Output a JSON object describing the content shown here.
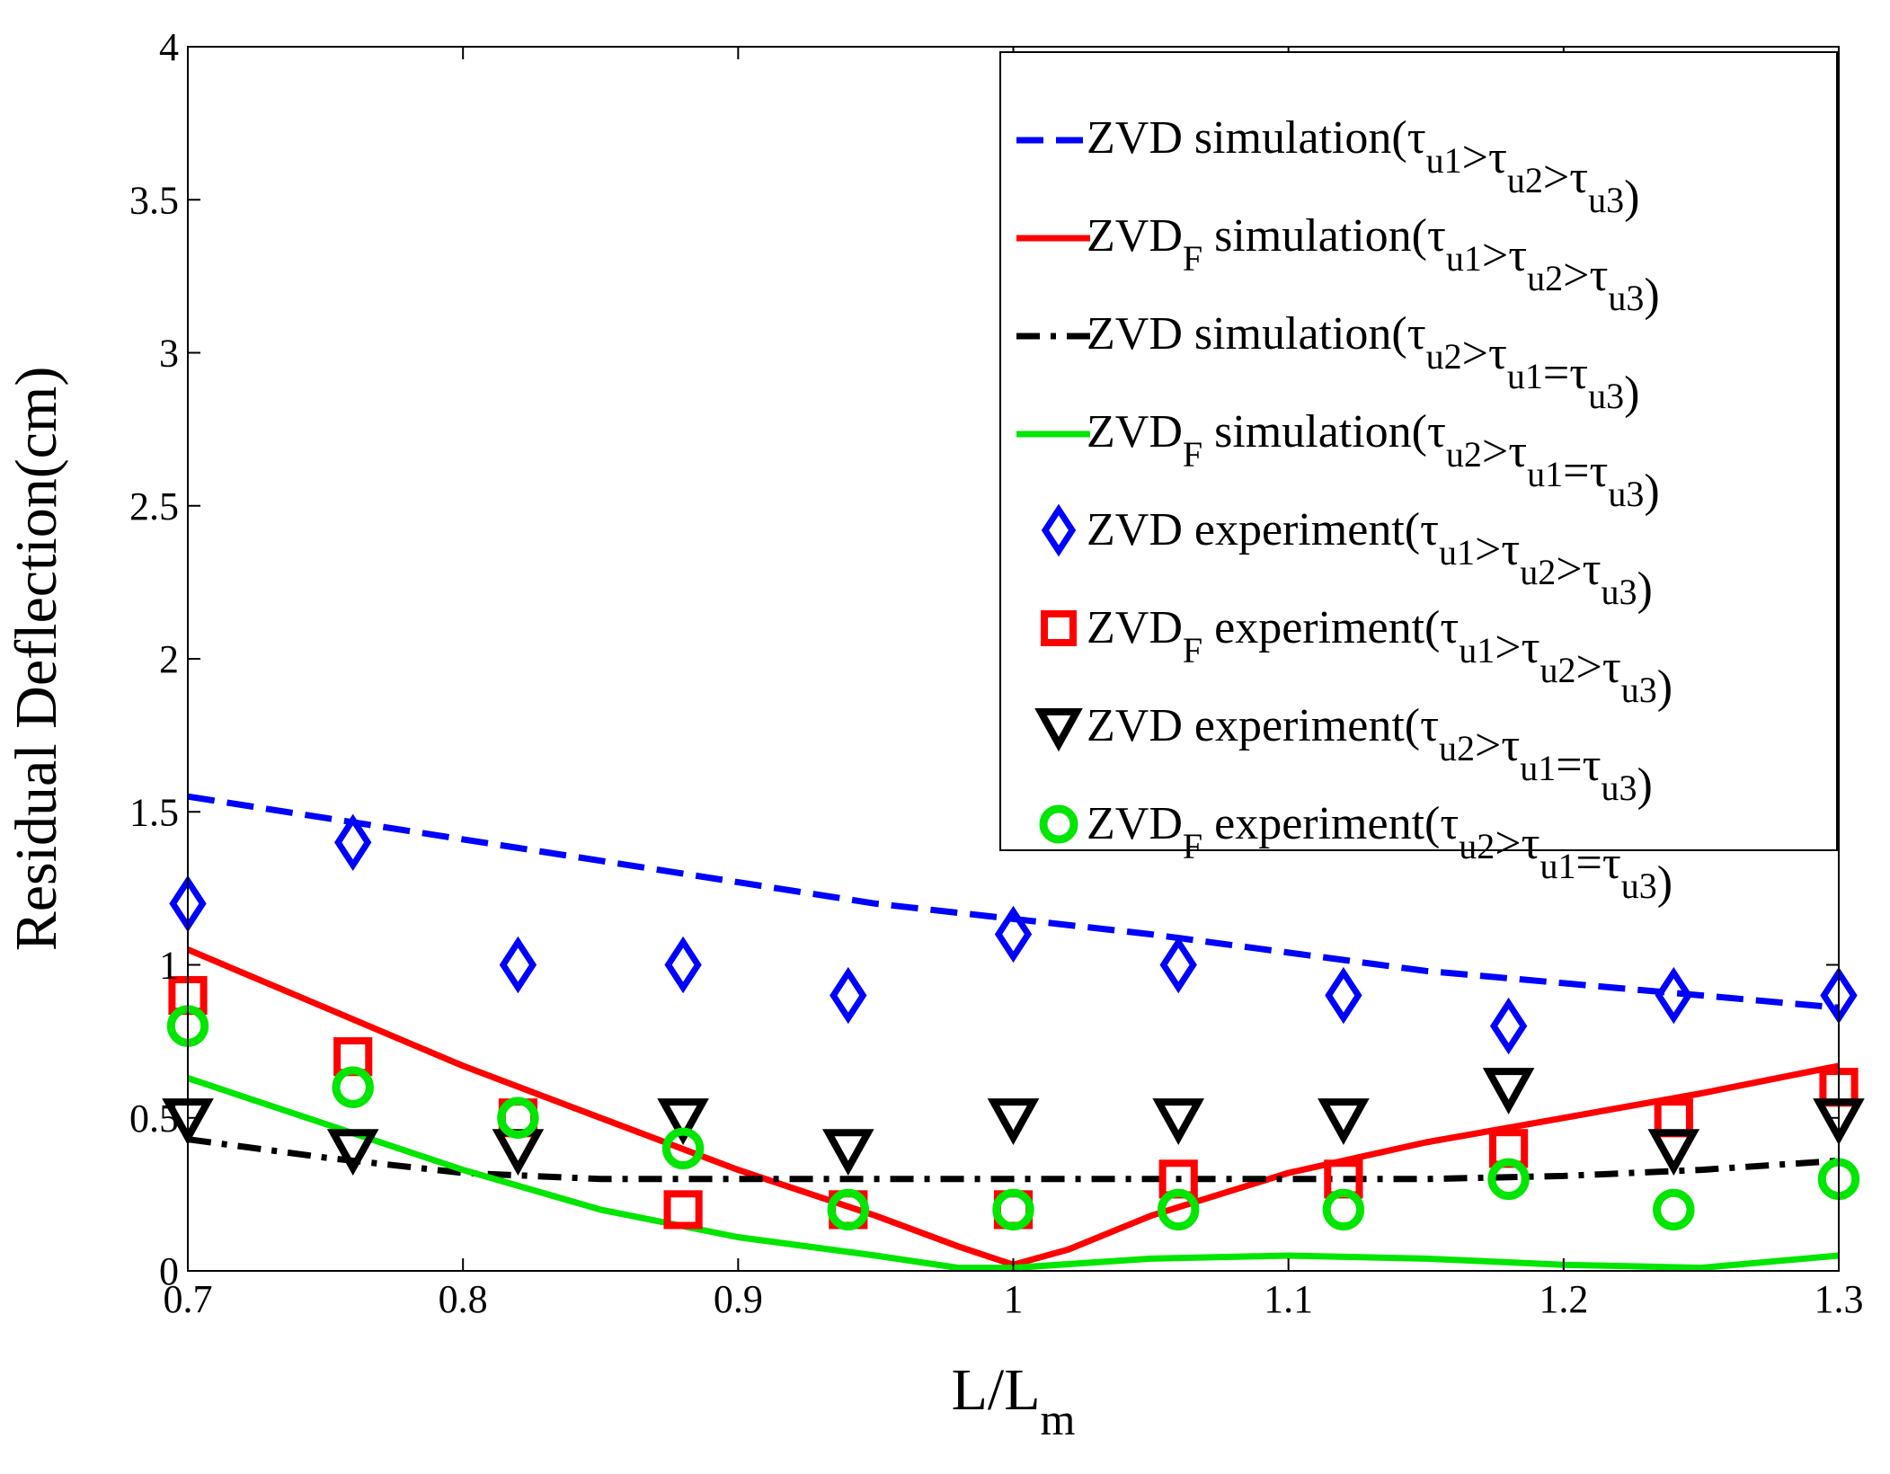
{
  "chart_data": {
    "type": "line",
    "title": "",
    "xlabel": "L/L",
    "xlabel_sub": "m",
    "ylabel": "Residual Deflection(cm)",
    "xlim": [
      0.7,
      1.3
    ],
    "ylim": [
      0,
      4
    ],
    "xticks": [
      0.7,
      0.8,
      0.9,
      1,
      1.1,
      1.2,
      1.3
    ],
    "xtick_labels": [
      "0.7",
      "0.8",
      "0.9",
      "1",
      "1.1",
      "1.2",
      "1.3"
    ],
    "yticks": [
      0,
      0.5,
      1,
      1.5,
      2,
      2.5,
      3,
      3.5,
      4
    ],
    "ytick_labels": [
      "0",
      "0.5",
      "1",
      "1.5",
      "2",
      "2.5",
      "3",
      "3.5",
      "4"
    ],
    "grid": false,
    "legend_position": "top-right",
    "series": [
      {
        "name": "ZVD simulation(τu1>τu2>τu3)",
        "legend": {
          "method": "ZVD",
          "method_sub": "",
          "kind": "simulation",
          "relation": [
            [
              "τ",
              "u1"
            ],
            [
              ">",
              ""
            ],
            [
              "τ",
              "u2"
            ],
            [
              ">",
              ""
            ],
            [
              "τ",
              "u3"
            ]
          ]
        },
        "kind": "line",
        "style": "dashed",
        "color": "#0000ff",
        "x": [
          0.7,
          0.75,
          0.8,
          0.85,
          0.9,
          0.95,
          1.0,
          1.05,
          1.1,
          1.15,
          1.2,
          1.25,
          1.3
        ],
        "y": [
          1.55,
          1.48,
          1.41,
          1.34,
          1.27,
          1.2,
          1.15,
          1.1,
          1.04,
          0.98,
          0.94,
          0.9,
          0.86
        ]
      },
      {
        "name": "ZVDF simulation(τu1>τu2>τu3)",
        "legend": {
          "method": "ZVD",
          "method_sub": "F",
          "kind": "simulation",
          "relation": [
            [
              "τ",
              "u1"
            ],
            [
              ">",
              ""
            ],
            [
              "τ",
              "u2"
            ],
            [
              ">",
              ""
            ],
            [
              "τ",
              "u3"
            ]
          ]
        },
        "kind": "line",
        "style": "solid",
        "color": "#ff0000",
        "x": [
          0.7,
          0.75,
          0.8,
          0.85,
          0.9,
          0.95,
          0.98,
          1.0,
          1.02,
          1.05,
          1.1,
          1.15,
          1.2,
          1.25,
          1.3
        ],
        "y": [
          1.05,
          0.86,
          0.67,
          0.5,
          0.33,
          0.18,
          0.08,
          0.02,
          0.07,
          0.18,
          0.32,
          0.42,
          0.5,
          0.58,
          0.67
        ]
      },
      {
        "name": "ZVD simulation(τu2>τu1=τu3)",
        "legend": {
          "method": "ZVD",
          "method_sub": "",
          "kind": "simulation",
          "relation": [
            [
              "τ",
              "u2"
            ],
            [
              ">",
              ""
            ],
            [
              "τ",
              "u1"
            ],
            [
              "=",
              ""
            ],
            [
              "τ",
              "u3"
            ]
          ]
        },
        "kind": "line",
        "style": "dashdot",
        "color": "#000000",
        "x": [
          0.7,
          0.75,
          0.8,
          0.85,
          0.9,
          0.95,
          1.0,
          1.05,
          1.1,
          1.15,
          1.2,
          1.25,
          1.3
        ],
        "y": [
          0.43,
          0.37,
          0.32,
          0.3,
          0.3,
          0.3,
          0.3,
          0.3,
          0.3,
          0.3,
          0.31,
          0.33,
          0.36
        ]
      },
      {
        "name": "ZVDF simulation(τu2>τu1=τu3)",
        "legend": {
          "method": "ZVD",
          "method_sub": "F",
          "kind": "simulation",
          "relation": [
            [
              "τ",
              "u2"
            ],
            [
              ">",
              ""
            ],
            [
              "τ",
              "u1"
            ],
            [
              "=",
              ""
            ],
            [
              "τ",
              "u3"
            ]
          ]
        },
        "kind": "line",
        "style": "solid",
        "color": "#00e600",
        "x": [
          0.7,
          0.75,
          0.8,
          0.85,
          0.9,
          0.95,
          0.98,
          1.0,
          1.05,
          1.1,
          1.15,
          1.2,
          1.25,
          1.3
        ],
        "y": [
          0.63,
          0.48,
          0.33,
          0.2,
          0.11,
          0.05,
          0.01,
          0.01,
          0.04,
          0.05,
          0.04,
          0.02,
          0.01,
          0.05
        ]
      },
      {
        "name": "ZVD experiment(τu1>τu2>τu3)",
        "legend": {
          "method": "ZVD",
          "method_sub": "",
          "kind": "experiment",
          "relation": [
            [
              "τ",
              "u1"
            ],
            [
              ">",
              ""
            ],
            [
              "τ",
              "u2"
            ],
            [
              ">",
              ""
            ],
            [
              "τ",
              "u3"
            ]
          ]
        },
        "kind": "markers",
        "marker": "diamond",
        "color": "#0000ff",
        "x": [
          0.7,
          0.76,
          0.82,
          0.88,
          0.94,
          1.0,
          1.06,
          1.12,
          1.18,
          1.24,
          1.3
        ],
        "y": [
          1.2,
          1.4,
          1.0,
          1.0,
          0.9,
          1.1,
          1.0,
          0.9,
          0.8,
          0.9,
          0.9
        ]
      },
      {
        "name": "ZVDF experiment(τu1>τu2>τu3)",
        "legend": {
          "method": "ZVD",
          "method_sub": "F",
          "kind": "experiment",
          "relation": [
            [
              "τ",
              "u1"
            ],
            [
              ">",
              ""
            ],
            [
              "τ",
              "u2"
            ],
            [
              ">",
              ""
            ],
            [
              "τ",
              "u3"
            ]
          ]
        },
        "kind": "markers",
        "marker": "square",
        "color": "#ff0000",
        "x": [
          0.7,
          0.76,
          0.82,
          0.88,
          0.94,
          1.0,
          1.06,
          1.12,
          1.18,
          1.24,
          1.3
        ],
        "y": [
          0.9,
          0.7,
          0.5,
          0.2,
          0.2,
          0.2,
          0.3,
          0.3,
          0.4,
          0.5,
          0.6
        ]
      },
      {
        "name": "ZVD experiment(τu2>τu1=τu3)",
        "legend": {
          "method": "ZVD",
          "method_sub": "",
          "kind": "experiment",
          "relation": [
            [
              "τ",
              "u2"
            ],
            [
              ">",
              ""
            ],
            [
              "τ",
              "u1"
            ],
            [
              "=",
              ""
            ],
            [
              "τ",
              "u3"
            ]
          ]
        },
        "kind": "markers",
        "marker": "triangle-down",
        "color": "#000000",
        "x": [
          0.7,
          0.76,
          0.82,
          0.88,
          0.94,
          1.0,
          1.06,
          1.12,
          1.18,
          1.24,
          1.3
        ],
        "y": [
          0.5,
          0.4,
          0.4,
          0.5,
          0.4,
          0.5,
          0.5,
          0.5,
          0.6,
          0.4,
          0.5
        ]
      },
      {
        "name": "ZVDF experiment(τu2>τu1=τu3)",
        "legend": {
          "method": "ZVD",
          "method_sub": "F",
          "kind": "experiment",
          "relation": [
            [
              "τ",
              "u2"
            ],
            [
              ">",
              ""
            ],
            [
              "τ",
              "u1"
            ],
            [
              "=",
              ""
            ],
            [
              "τ",
              "u3"
            ]
          ]
        },
        "kind": "markers",
        "marker": "circle",
        "color": "#00e600",
        "x": [
          0.7,
          0.76,
          0.82,
          0.88,
          0.94,
          1.0,
          1.06,
          1.12,
          1.18,
          1.24,
          1.3
        ],
        "y": [
          0.8,
          0.6,
          0.5,
          0.4,
          0.2,
          0.2,
          0.2,
          0.2,
          0.3,
          0.2,
          0.3
        ]
      }
    ]
  }
}
